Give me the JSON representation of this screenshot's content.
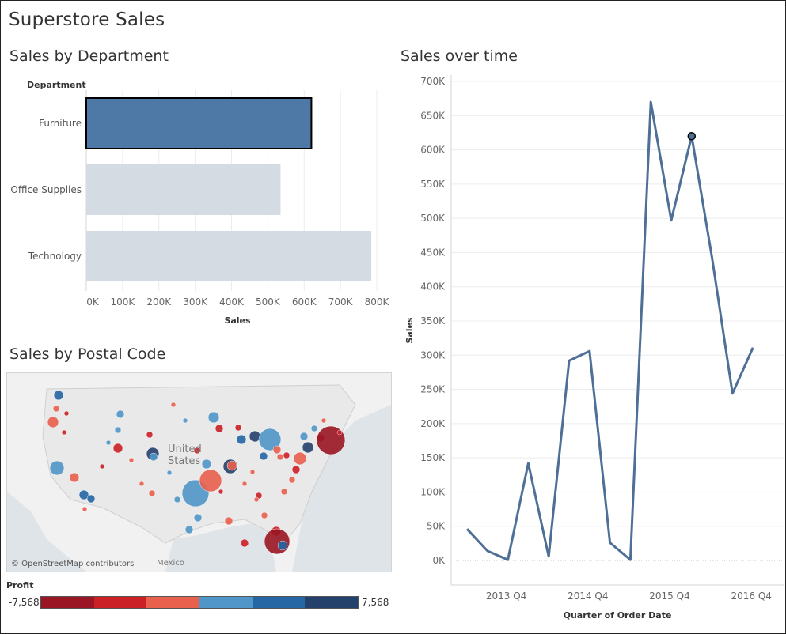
{
  "dashboard": {
    "title": "Superstore Sales"
  },
  "panels": {
    "department": "Sales by Department",
    "time": "Sales over time",
    "postal": "Sales by Postal Code"
  },
  "chart_data": [
    {
      "type": "bar",
      "orientation": "horizontal",
      "title": "Sales by Department",
      "category_header": "Department",
      "categories": [
        "Furniture",
        "Office Supplies",
        "Technology"
      ],
      "values": [
        620000,
        535000,
        785000
      ],
      "selected": "Furniture",
      "xlabel": "Sales",
      "xlim": [
        0,
        800000
      ],
      "xticks": [
        "0K",
        "100K",
        "200K",
        "300K",
        "400K",
        "500K",
        "600K",
        "700K",
        "800K"
      ],
      "colors": {
        "selected": "#4e79a7",
        "unselected": "#d5dbe2"
      },
      "grid": true
    },
    {
      "type": "line",
      "title": "Sales over time",
      "x": [
        "2013 Q2",
        "2013 Q3",
        "2013 Q4",
        "2014 Q1",
        "2014 Q2",
        "2014 Q3",
        "2014 Q4",
        "2015 Q1",
        "2015 Q2",
        "2015 Q3",
        "2015 Q4",
        "2016 Q1",
        "2016 Q2",
        "2016 Q3",
        "2016 Q4"
      ],
      "values": [
        46000,
        14000,
        1000,
        142000,
        6000,
        292000,
        306000,
        26000,
        1000,
        670000,
        497000,
        620000,
        442000,
        244000,
        311000
      ],
      "highlighted_index": 11,
      "xlabel": "Quarter of Order Date",
      "ylabel": "Sales",
      "ylim": [
        0,
        700000
      ],
      "yticks": [
        "0K",
        "50K",
        "100K",
        "150K",
        "200K",
        "250K",
        "300K",
        "350K",
        "400K",
        "450K",
        "500K",
        "550K",
        "600K",
        "650K",
        "700K"
      ],
      "xtick_labels": [
        "2013 Q4",
        "2014 Q4",
        "2015 Q4",
        "2016 Q4"
      ],
      "color": "#4e6f96",
      "grid": true
    },
    {
      "type": "map",
      "title": "Sales by Postal Code",
      "map_labels": [
        "United",
        "States",
        "Mexico"
      ],
      "attribution": "© OpenStreetMap contributors",
      "legend": {
        "title": "Profit",
        "min": "-7,568",
        "max": "7,568",
        "colors": [
          "#9b1624",
          "#cc2027",
          "#e9604d",
          "#5196c8",
          "#2566a4",
          "#24416c"
        ]
      }
    }
  ]
}
